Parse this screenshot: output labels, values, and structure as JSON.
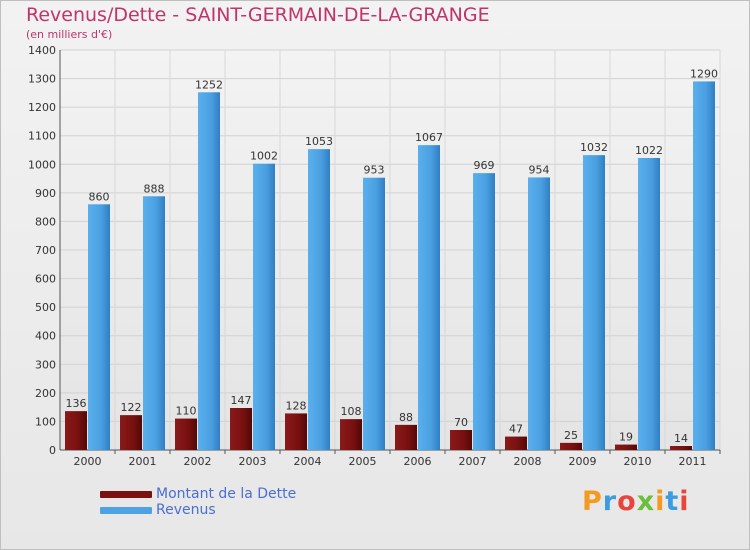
{
  "chart_data": {
    "type": "bar",
    "title": "Revenus/Dette - SAINT-GERMAIN-DE-LA-GRANGE",
    "subtitle": "(en milliers d'€)",
    "categories": [
      "2000",
      "2001",
      "2002",
      "2003",
      "2004",
      "2005",
      "2006",
      "2007",
      "2008",
      "2009",
      "2010",
      "2011"
    ],
    "series": [
      {
        "name": "Montant de la Dette",
        "color": "#7a1010",
        "values": [
          136,
          122,
          110,
          147,
          128,
          108,
          88,
          70,
          47,
          25,
          19,
          14
        ]
      },
      {
        "name": "Revenus",
        "color": "#4ea2e4",
        "values": [
          860,
          888,
          1252,
          1002,
          1053,
          953,
          1067,
          969,
          954,
          1032,
          1022,
          1290
        ]
      }
    ],
    "ylim": [
      0,
      1400
    ],
    "yticks": [
      0,
      100,
      200,
      300,
      400,
      500,
      600,
      700,
      800,
      900,
      1000,
      1100,
      1200,
      1300,
      1400
    ],
    "grid": true,
    "legend_position": "bottom-left"
  },
  "logo": {
    "text": "Proxiti",
    "letter_colors": [
      "#f59a1e",
      "#3d9be0",
      "#e8453c",
      "#6cbf3c",
      "#f59a1e",
      "#3d9be0",
      "#e8453c"
    ]
  }
}
